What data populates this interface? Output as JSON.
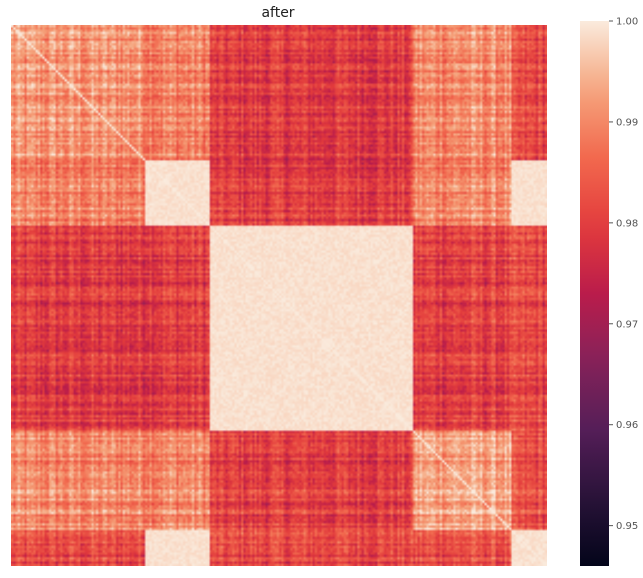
{
  "chart_data": {
    "type": "heatmap",
    "title": "after",
    "xlabel": "",
    "ylabel": "",
    "x_tick_labels": [],
    "y_tick_labels": [],
    "color_scale": {
      "colormap": "rocket",
      "vmin": 0.946,
      "vmax": 1.0,
      "ticks": [
        0.95,
        0.96,
        0.97,
        0.98,
        0.99,
        1.0
      ],
      "tick_labels": [
        "0.95",
        "0.96",
        "0.97",
        "0.98",
        "0.99",
        "1.00"
      ]
    },
    "block_structure": {
      "description_of_values": "symmetric similarity matrix with block clusters",
      "group_boundaries_fraction": [
        0,
        0.248,
        0.372,
        0.748,
        0.934,
        1.0
      ],
      "group_mean_values": [
        [
          0.991,
          0.989,
          0.981,
          0.989,
          0.982
        ],
        [
          0.989,
          0.999,
          0.98,
          0.991,
          0.999
        ],
        [
          0.979,
          0.98,
          0.999,
          0.98,
          0.98
        ],
        [
          0.99,
          0.99,
          0.98,
          0.993,
          0.981
        ],
        [
          0.981,
          0.999,
          0.981,
          0.982,
          0.999
        ]
      ]
    }
  }
}
